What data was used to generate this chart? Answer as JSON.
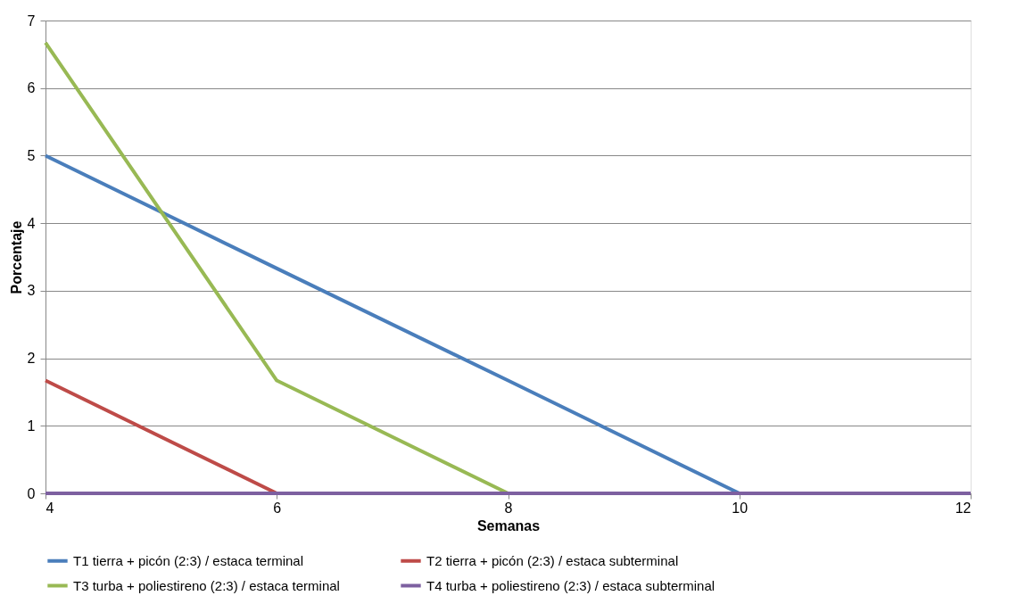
{
  "chart_data": {
    "type": "line",
    "xlabel": "Semanas",
    "ylabel": "Porcentaje",
    "x": [
      4,
      6,
      8,
      10,
      12
    ],
    "series": [
      {
        "name": "T1 tierra + picón (2:3) / estaca terminal",
        "color": "#4a7ebb",
        "values": [
          5,
          3.33,
          1.67,
          0,
          null
        ]
      },
      {
        "name": "T2 tierra + picón (2:3) / estaca subterminal",
        "color": "#be4b48",
        "values": [
          1.67,
          0,
          null,
          null,
          null
        ]
      },
      {
        "name": "T3 turba + poliestireno (2:3) / estaca terminal",
        "color": "#98b954",
        "values": [
          6.67,
          1.67,
          0,
          null,
          null
        ]
      },
      {
        "name": "T4 turba + poliestireno (2:3) / estaca subterminal",
        "color": "#7d60a0",
        "values": [
          0,
          0,
          0,
          0,
          0
        ]
      }
    ],
    "xlim": [
      4,
      12
    ],
    "xticks": [
      4,
      6,
      8,
      10,
      12
    ],
    "ylim": [
      0,
      7
    ],
    "yticks": [
      0,
      1,
      2,
      3,
      4,
      5,
      6,
      7
    ],
    "grid": "y",
    "legend": "bottom",
    "marker": "none",
    "line_style": "solid"
  }
}
